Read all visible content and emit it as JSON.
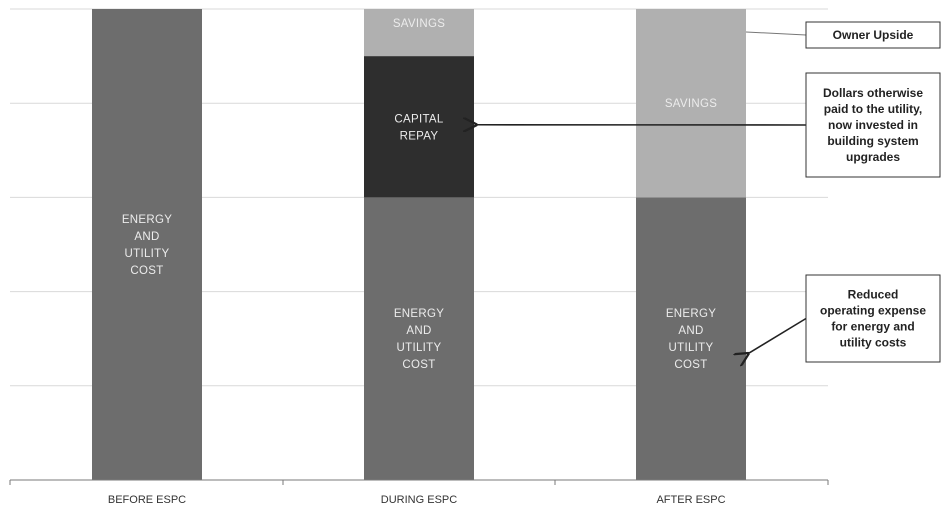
{
  "chart_data": {
    "type": "bar",
    "stacked": true,
    "ylim": [
      0,
      5
    ],
    "grid": true,
    "categories": [
      "BEFORE ESPC",
      "DURING ESPC",
      "AFTER ESPC"
    ],
    "segments": [
      [
        {
          "label": [
            "ENERGY",
            "AND",
            "UTILITY",
            "COST"
          ],
          "from": 0,
          "to": 5,
          "color": "#6d6d6d"
        }
      ],
      [
        {
          "label": [
            "ENERGY",
            "AND",
            "UTILITY",
            "COST"
          ],
          "from": 0,
          "to": 3,
          "color": "#6d6d6d"
        },
        {
          "label": [
            "CAPITAL",
            "REPAY"
          ],
          "from": 3,
          "to": 4.5,
          "color": "#2e2e2e"
        },
        {
          "label": [
            "SAVINGS"
          ],
          "from": 4.5,
          "to": 5,
          "color": "#b0b0b0"
        }
      ],
      [
        {
          "label": [
            "ENERGY",
            "AND",
            "UTILITY",
            "COST"
          ],
          "from": 0,
          "to": 3,
          "color": "#6d6d6d"
        },
        {
          "label": [
            "SAVINGS"
          ],
          "from": 3,
          "to": 5,
          "color": "#b0b0b0"
        }
      ]
    ],
    "annotations": [
      {
        "text": [
          "Owner Upside"
        ],
        "target": "AFTER ESPC / SAVINGS",
        "style": "line"
      },
      {
        "text": [
          "Dollars otherwise",
          "paid to the utility,",
          "now invested in",
          "building system",
          "upgrades"
        ],
        "target": "DURING ESPC / CAPITAL REPAY",
        "style": "arrow"
      },
      {
        "text": [
          "Reduced",
          "operating expense",
          "for energy and",
          "utility costs"
        ],
        "target": "AFTER ESPC / ENERGY AND UTILITY COST",
        "style": "arrow"
      }
    ]
  }
}
